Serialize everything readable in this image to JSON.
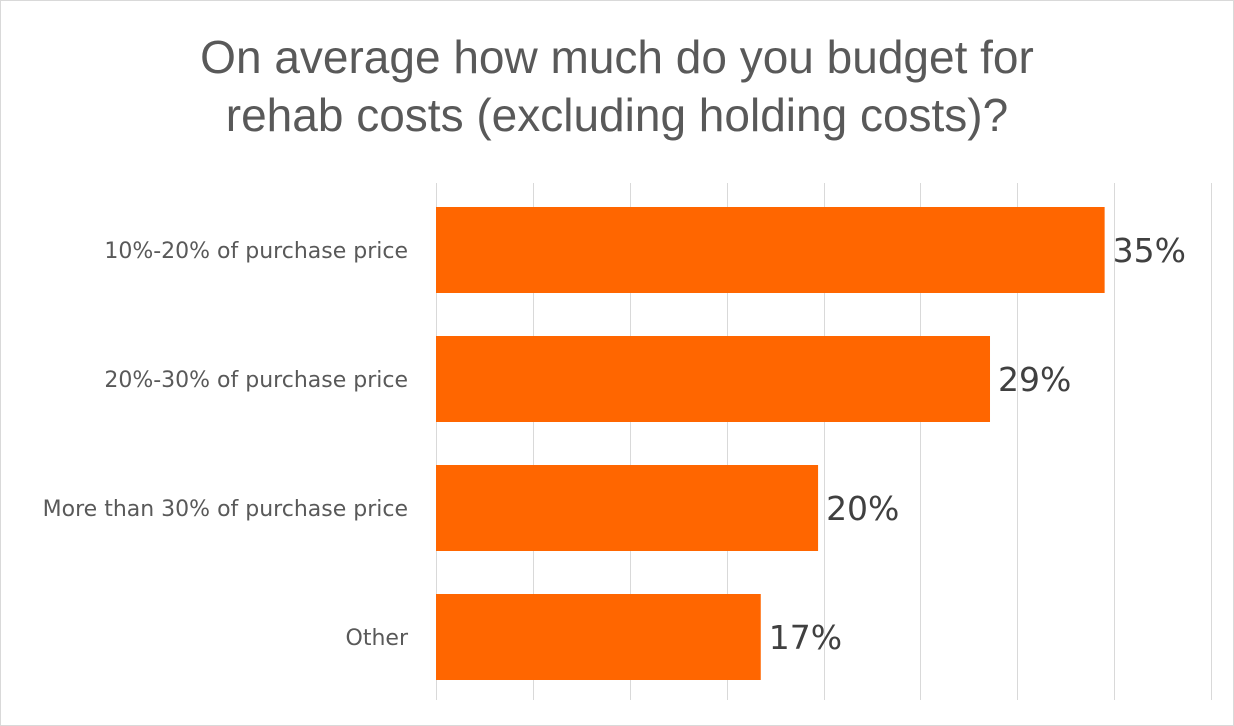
{
  "chart_data": {
    "type": "bar",
    "orientation": "horizontal",
    "title_line1": "On average how much do you budget for",
    "title_line2": "rehab costs (excluding holding costs)?",
    "categories": [
      "10%-20% of purchase price",
      "20%-30% of purchase price",
      "More than 30% of purchase price",
      "Other"
    ],
    "values": [
      35,
      29,
      20,
      17
    ],
    "data_labels": [
      "35%",
      "29%",
      "20%",
      "17%"
    ],
    "xlim": [
      0,
      40
    ],
    "grid_step": 5,
    "grid": true,
    "bar_color": "#FF6600",
    "grid_color": "#d9d9d9"
  }
}
